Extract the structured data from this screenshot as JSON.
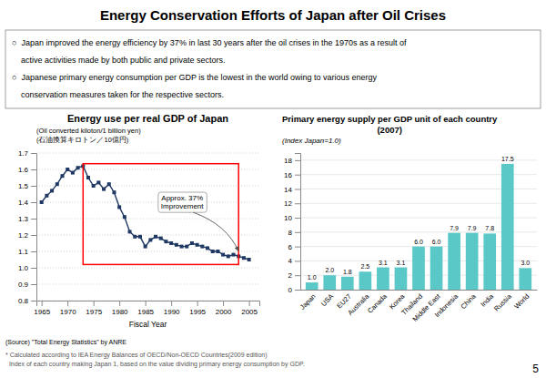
{
  "title": "Energy Conservation Efforts of Japan after Oil Crises",
  "bullets": [
    "○  Japan improved the energy efficiency by 37% in last 30 years after the oil crises in the 1970s as a result of",
    "    active activities made by both public and private sectors.",
    "○  Japanese primary energy consumption per GDP is the lowest in the world owing to various energy",
    "    conservation measures taken for the respective sectors."
  ],
  "chart_data": [
    {
      "type": "line",
      "title": "Energy use per real GDP of Japan",
      "subtitle": [
        "(Oil converted kiloton/1 billion yen)",
        "(石油換算キロトン／10億円)"
      ],
      "xlabel": "Fiscal Year",
      "x": [
        1965,
        1966,
        1967,
        1968,
        1969,
        1970,
        1971,
        1972,
        1973,
        1974,
        1975,
        1976,
        1977,
        1978,
        1979,
        1980,
        1981,
        1982,
        1983,
        1984,
        1985,
        1986,
        1987,
        1988,
        1989,
        1990,
        1991,
        1992,
        1993,
        1994,
        1995,
        1996,
        1997,
        1998,
        1999,
        2000,
        2001,
        2002,
        2003,
        2004,
        2005
      ],
      "values": [
        1.4,
        1.44,
        1.47,
        1.51,
        1.56,
        1.6,
        1.58,
        1.61,
        1.62,
        1.55,
        1.5,
        1.52,
        1.48,
        1.51,
        1.46,
        1.37,
        1.31,
        1.22,
        1.19,
        1.19,
        1.13,
        1.17,
        1.19,
        1.18,
        1.16,
        1.15,
        1.14,
        1.13,
        1.13,
        1.15,
        1.14,
        1.13,
        1.12,
        1.1,
        1.1,
        1.08,
        1.07,
        1.08,
        1.07,
        1.06,
        1.05
      ],
      "color": "#1F3864",
      "marker": "square",
      "xlim": [
        1964,
        2007
      ],
      "xticks": [
        1965,
        1970,
        1975,
        1980,
        1985,
        1990,
        1995,
        2000,
        2005
      ],
      "ylim": [
        0.8,
        1.7
      ],
      "yticks": [
        0.8,
        0.9,
        {
          "value": 1.0,
          "label": "1.0"
        },
        1.1,
        1.2,
        1.3,
        1.4,
        1.5,
        1.6,
        1.7
      ],
      "grid": true,
      "highlight": {
        "x": [
          1973,
          2003
        ],
        "y": [
          1.02,
          1.635
        ],
        "color": "red"
      },
      "annotations": [
        {
          "text": "Approx. 37%\nImprovement",
          "x": 2003,
          "y": 1.1
        }
      ]
    },
    {
      "type": "bar",
      "title": "Primary energy supply per GDP unit of each country",
      "subtitle": [
        "(2007)",
        "(Index Japan=1.0)"
      ],
      "categories": [
        "Japan",
        "USA",
        "EU27",
        "Australia",
        "Canada",
        "Korea",
        "Thailand",
        "Middle East",
        "Indonesia",
        "China",
        "India",
        "Russia",
        "World"
      ],
      "values": [
        1.0,
        2.0,
        1.8,
        2.5,
        3.1,
        3.1,
        6.0,
        6.0,
        7.9,
        7.9,
        7.8,
        17.5,
        3.0
      ],
      "value_labels": [
        "1.0",
        "2.0",
        "1.8",
        "2.5",
        "3.1",
        "3.1",
        "6.0",
        "6.0",
        "7.9",
        "7.9",
        "7.8",
        "17.5",
        "3.0"
      ],
      "data_labels": true,
      "color": "#5BC8C8",
      "ylim": [
        0,
        19
      ],
      "yticks": [
        0,
        2,
        4,
        6,
        8,
        10,
        12,
        14,
        16,
        18
      ],
      "grid": true
    }
  ],
  "source": "(Source) \"Total Energy Statistics\" by ANRE",
  "notes": [
    "* Calculated according to IEA Energy Balances of OECD/Non-OECD Countries(2009 edition)",
    "  Index of each country making Japan 1, based on the value dividing primary energy consumption by GDP."
  ],
  "page_number": "5"
}
